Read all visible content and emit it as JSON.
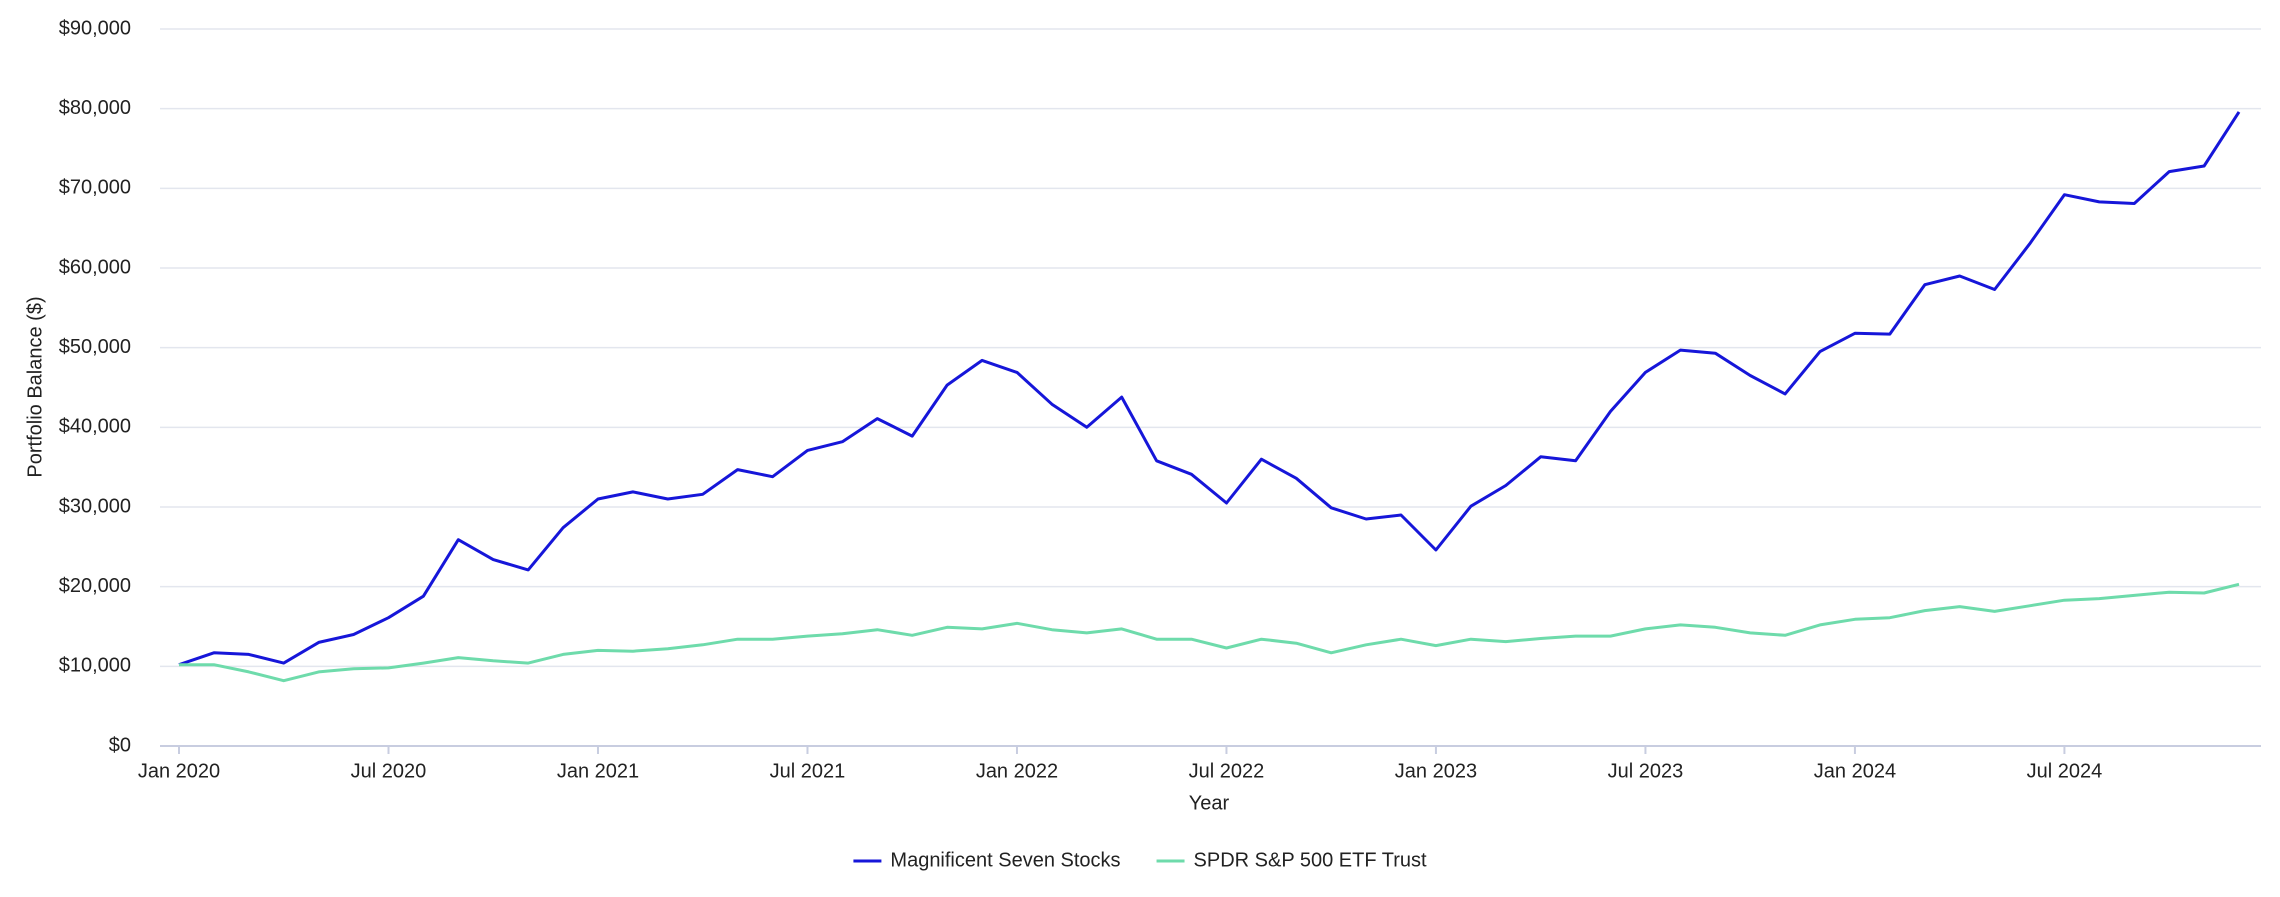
{
  "chart_data": {
    "type": "line",
    "x_label": "Year",
    "y_label": "Portfolio Balance ($)",
    "categories": [
      "Jan 2020",
      null,
      null,
      null,
      null,
      null,
      "Jul 2020",
      null,
      null,
      null,
      null,
      null,
      "Jan 2021",
      null,
      null,
      null,
      null,
      null,
      "Jul 2021",
      null,
      null,
      null,
      null,
      null,
      "Jan 2022",
      null,
      null,
      null,
      null,
      null,
      "Jul 2022",
      null,
      null,
      null,
      null,
      null,
      "Jan 2023",
      null,
      null,
      null,
      null,
      null,
      "Jul 2023",
      null,
      null,
      null,
      null,
      null,
      "Jan 2024",
      null,
      null,
      null,
      null,
      null,
      "Jul 2024",
      null,
      null,
      null,
      null,
      null
    ],
    "series": [
      {
        "name": "Magnificent Seven Stocks",
        "color": "#1616d9",
        "values": [
          10200,
          11700,
          11500,
          10400,
          13000,
          14000,
          16100,
          18800,
          25900,
          23400,
          22100,
          27400,
          31000,
          31900,
          31000,
          31600,
          34700,
          33800,
          37100,
          38200,
          41100,
          38900,
          45300,
          48400,
          46900,
          42900,
          40000,
          43800,
          35800,
          34100,
          30500,
          36000,
          33600,
          29900,
          28500,
          29000,
          24600,
          30100,
          32700,
          36300,
          35800,
          42000,
          46900,
          49700,
          49300,
          46500,
          44200,
          49500,
          51800,
          51700,
          57900,
          59000,
          57300,
          63000,
          69200,
          68300,
          68100,
          72100,
          72800,
          79600
        ]
      },
      {
        "name": "SPDR S&P 500 ETF Trust",
        "color": "#6edbab",
        "values": [
          10200,
          10200,
          9300,
          8200,
          9300,
          9700,
          9800,
          10400,
          11100,
          10700,
          10400,
          11500,
          12000,
          11900,
          12200,
          12700,
          13400,
          13400,
          13800,
          14100,
          14600,
          13900,
          14900,
          14700,
          15400,
          14600,
          14200,
          14700,
          13400,
          13400,
          12300,
          13400,
          12900,
          11700,
          12700,
          13400,
          12600,
          13400,
          13100,
          13500,
          13800,
          13800,
          14700,
          15200,
          14900,
          14200,
          13900,
          15200,
          15900,
          16100,
          17000,
          17500,
          16900,
          17600,
          18300,
          18500,
          18900,
          19300,
          19200,
          20300
        ]
      }
    ],
    "ylim": [
      0,
      90000
    ],
    "yticks": [
      {
        "value": 0,
        "label": "$0"
      },
      {
        "value": 10000,
        "label": "$10,000"
      },
      {
        "value": 20000,
        "label": "$20,000"
      },
      {
        "value": 30000,
        "label": "$30,000"
      },
      {
        "value": 40000,
        "label": "$40,000"
      },
      {
        "value": 50000,
        "label": "$50,000"
      },
      {
        "value": 60000,
        "label": "$60,000"
      },
      {
        "value": 70000,
        "label": "$70,000"
      },
      {
        "value": 80000,
        "label": "$80,000"
      },
      {
        "value": 90000,
        "label": "$90,000"
      }
    ],
    "grid": true,
    "legend": "bottom"
  }
}
